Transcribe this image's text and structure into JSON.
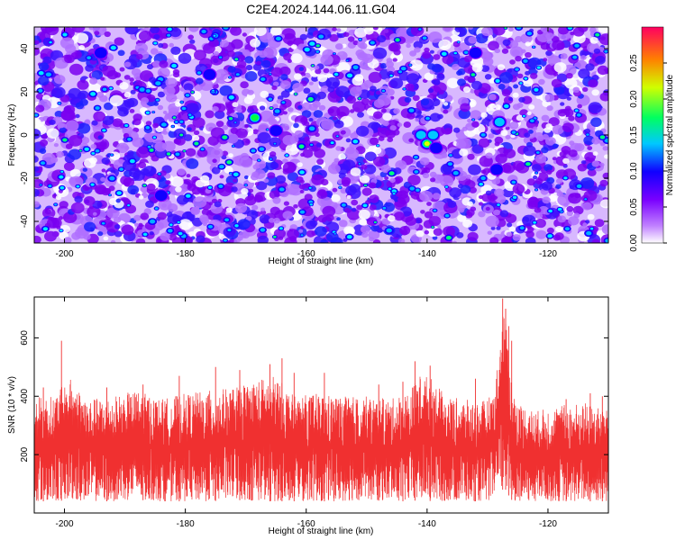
{
  "title": "C2E4.2024.144.06.11.G04",
  "chart_data": [
    {
      "type": "heatmap",
      "title": "C2E4.2024.144.06.11.G04",
      "xlabel": "Height of straight line (km)",
      "ylabel": "Frequency (Hz)",
      "xlim": [
        -205,
        -110
      ],
      "ylim": [
        -50,
        50
      ],
      "x_ticks": [
        -200,
        -180,
        -160,
        -140,
        -120
      ],
      "y_ticks": [
        -40,
        -20,
        0,
        20,
        40
      ],
      "colorbar": {
        "label": "Normalized spectral amplitude",
        "range": [
          0,
          0.3
        ],
        "ticks": [
          "0.00",
          "0.05",
          "0.10",
          "0.15",
          "0.20",
          "0.25"
        ],
        "palette": [
          "#ffffff",
          "#8a00ff",
          "#1000ff",
          "#00c8ff",
          "#00ff40",
          "#e0ff00",
          "#ff8000",
          "#ff0040"
        ]
      },
      "hotspots": [
        {
          "x": -168.5,
          "y": 8,
          "amplitude": 0.22
        },
        {
          "x": -165,
          "y": 2,
          "amplitude": 0.12
        },
        {
          "x": -141,
          "y": 0,
          "amplitude": 0.14
        },
        {
          "x": -140,
          "y": -4,
          "amplitude": 0.27
        },
        {
          "x": -139,
          "y": 0,
          "amplitude": 0.15
        },
        {
          "x": -138.5,
          "y": -6,
          "amplitude": 0.12
        },
        {
          "x": -128,
          "y": 6,
          "amplitude": 0.16
        },
        {
          "x": -128.5,
          "y": -16,
          "amplitude": 0.12
        },
        {
          "x": -194,
          "y": 38,
          "amplitude": 0.1
        },
        {
          "x": -176,
          "y": 28,
          "amplitude": 0.1
        },
        {
          "x": -132,
          "y": 38,
          "amplitude": 0.11
        },
        {
          "x": -184,
          "y": -28,
          "amplitude": 0.1
        }
      ]
    },
    {
      "type": "line",
      "xlabel": "Height of straight line (km)",
      "ylabel": "SNR (10 * v/v)",
      "xlim": [
        -205,
        -110
      ],
      "ylim": [
        0,
        740
      ],
      "x_ticks": [
        -200,
        -180,
        -160,
        -140,
        -120
      ],
      "y_ticks": [
        200,
        400,
        600
      ],
      "color": "#f03030",
      "envelope": {
        "x": [
          -205,
          -202,
          -199,
          -196,
          -192,
          -188,
          -184,
          -180,
          -176,
          -172,
          -168,
          -165,
          -162,
          -158,
          -154,
          -150,
          -146,
          -143,
          -141,
          -139,
          -137,
          -134,
          -131,
          -129,
          -128,
          -127.5,
          -127,
          -126.5,
          -126,
          -125,
          -122,
          -118,
          -114,
          -110
        ],
        "min": [
          40,
          40,
          45,
          40,
          40,
          45,
          40,
          40,
          40,
          45,
          40,
          40,
          40,
          40,
          40,
          45,
          40,
          40,
          45,
          40,
          40,
          40,
          40,
          45,
          60,
          80,
          80,
          60,
          45,
          40,
          40,
          40,
          40,
          40
        ],
        "max": [
          400,
          400,
          460,
          390,
          400,
          420,
          390,
          410,
          420,
          430,
          460,
          470,
          400,
          410,
          400,
          400,
          390,
          420,
          480,
          460,
          400,
          390,
          380,
          410,
          560,
          740,
          650,
          600,
          440,
          380,
          350,
          370,
          380,
          350
        ]
      },
      "peaks": [
        {
          "x": -205,
          "y": 390
        },
        {
          "x": -203.5,
          "y": 430
        },
        {
          "x": -200.5,
          "y": 590
        },
        {
          "x": -193,
          "y": 430
        },
        {
          "x": -187,
          "y": 440
        },
        {
          "x": -181,
          "y": 470
        },
        {
          "x": -175,
          "y": 500
        },
        {
          "x": -171,
          "y": 490
        },
        {
          "x": -166,
          "y": 510
        },
        {
          "x": -164,
          "y": 530
        },
        {
          "x": -162,
          "y": 480
        },
        {
          "x": -157,
          "y": 480
        },
        {
          "x": -148,
          "y": 440
        },
        {
          "x": -144,
          "y": 450
        },
        {
          "x": -142,
          "y": 520
        },
        {
          "x": -139.5,
          "y": 505
        },
        {
          "x": -132,
          "y": 460
        },
        {
          "x": -127.5,
          "y": 735
        },
        {
          "x": -127,
          "y": 700
        },
        {
          "x": -126.5,
          "y": 640
        },
        {
          "x": -126,
          "y": 590
        },
        {
          "x": -117,
          "y": 390
        },
        {
          "x": -113,
          "y": 410
        },
        {
          "x": -111,
          "y": 400
        }
      ]
    }
  ]
}
